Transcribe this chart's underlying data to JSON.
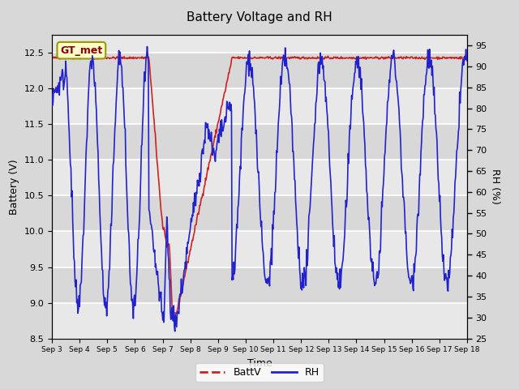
{
  "title": "Battery Voltage and RH",
  "xlabel": "Time",
  "ylabel_left": "Battery (V)",
  "ylabel_right": "RH (%)",
  "left_ylim": [
    8.5,
    12.75
  ],
  "right_ylim": [
    25,
    97.5
  ],
  "left_yticks": [
    8.5,
    9.0,
    9.5,
    10.0,
    10.5,
    11.0,
    11.5,
    12.0,
    12.5
  ],
  "right_yticks": [
    25,
    30,
    35,
    40,
    45,
    50,
    55,
    60,
    65,
    70,
    75,
    80,
    85,
    90,
    95
  ],
  "xtick_labels": [
    "Sep 3",
    "Sep 4",
    "Sep 5",
    "Sep 6",
    "Sep 7",
    "Sep 8",
    "Sep 9",
    "Sep 10",
    "Sep 11",
    "Sep 12",
    "Sep 13",
    "Sep 14",
    "Sep 15",
    "Sep 16",
    "Sep 17",
    "Sep 18"
  ],
  "n_days": 15,
  "bg_color": "#d8d8d8",
  "plot_bg_color": "#e8e8e8",
  "plot_bg_dark": "#cccccc",
  "grid_color": "#ffffff",
  "batt_color": "#cc2222",
  "rh_color": "#2222cc",
  "legend_label_batt": "BattV",
  "legend_label_rh": "RH",
  "annotation_text": "GT_met",
  "annotation_bg": "#ffffcc",
  "annotation_border": "#999900",
  "annotation_color": "#880000"
}
